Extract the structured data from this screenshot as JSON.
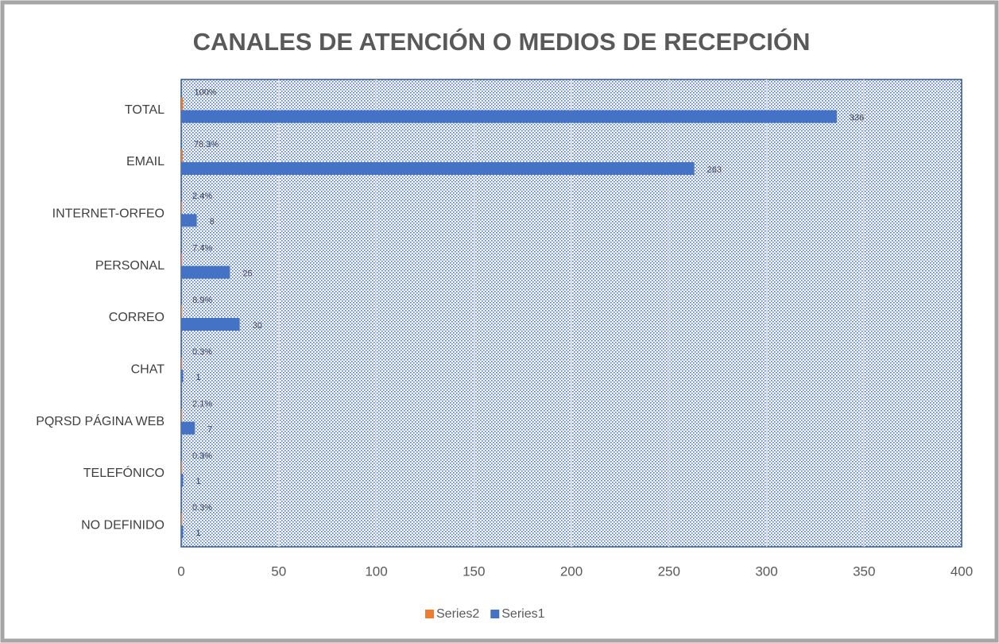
{
  "chart_data": {
    "type": "bar",
    "orientation": "horizontal",
    "title": "CANALES DE ATENCIÓN O MEDIOS DE RECEPCIÓN",
    "categories": [
      "TOTAL",
      "EMAIL",
      "INTERNET-ORFEO",
      "PERSONAL",
      "CORREO",
      "CHAT",
      "PQRSD PÁGINA WEB",
      "TELEFÓNICO",
      "NO DEFINIDO"
    ],
    "series": [
      {
        "name": "Series2",
        "color": "#ed7d31",
        "values": [
          1,
          0.783,
          0.024,
          0.074,
          0.089,
          0.003,
          0.021,
          0.003,
          0.003
        ],
        "value_labels": [
          "100%",
          "78.3%",
          "2.4%",
          "7.4%",
          "8.9%",
          "0.3%",
          "2.1%",
          "0.3%",
          "0.3%"
        ]
      },
      {
        "name": "Series1",
        "color": "#4472c4",
        "values": [
          336,
          263,
          8,
          25,
          30,
          1,
          7,
          1,
          1
        ]
      }
    ],
    "xlim": [
      0,
      400
    ],
    "xticks": [
      0,
      50,
      100,
      150,
      200,
      250,
      300,
      350,
      400
    ],
    "grid": true,
    "legend": "bottom"
  }
}
